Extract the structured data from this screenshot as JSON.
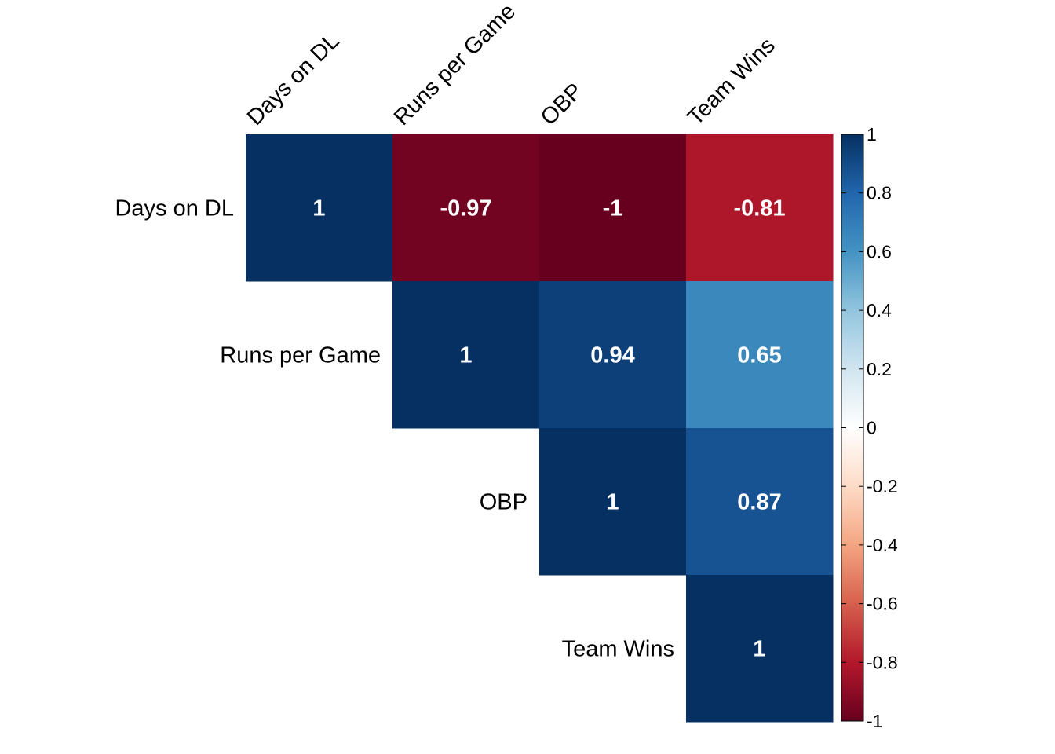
{
  "chart_data": {
    "type": "heatmap",
    "variables": [
      "Days on DL",
      "Runs per Game",
      "OBP",
      "Team Wins"
    ],
    "matrix": [
      [
        1,
        -0.97,
        -1,
        -0.81
      ],
      [
        -0.97,
        1,
        0.94,
        0.65
      ],
      [
        -1,
        0.94,
        1,
        0.87
      ],
      [
        -0.81,
        0.65,
        0.87,
        1
      ]
    ],
    "cell_labels": [
      [
        "1",
        "-0.97",
        "-1",
        "-0.81"
      ],
      [
        "",
        "1",
        "0.94",
        "0.65"
      ],
      [
        "",
        "",
        "1",
        "0.87"
      ],
      [
        "",
        "",
        "",
        "1"
      ]
    ],
    "shown": "upper triangle",
    "color_scale": {
      "range": [
        -1,
        1
      ],
      "ticks": [
        1,
        0.8,
        0.6,
        0.4,
        0.2,
        0,
        -0.2,
        -0.4,
        -0.6,
        -0.8,
        -1
      ],
      "tick_labels": [
        "1",
        "0.8",
        "0.6",
        "0.4",
        "0.2",
        "0",
        "-0.2",
        "-0.4",
        "-0.6",
        "-0.8",
        "-1"
      ],
      "colors": [
        "#67001F",
        "#B2182B",
        "#D6604D",
        "#F4A582",
        "#FDDBC7",
        "#FFFFFF",
        "#D1E5F0",
        "#92C5DE",
        "#4393C3",
        "#2166AC",
        "#053061"
      ]
    },
    "legend_placement": "right",
    "grid": false
  }
}
